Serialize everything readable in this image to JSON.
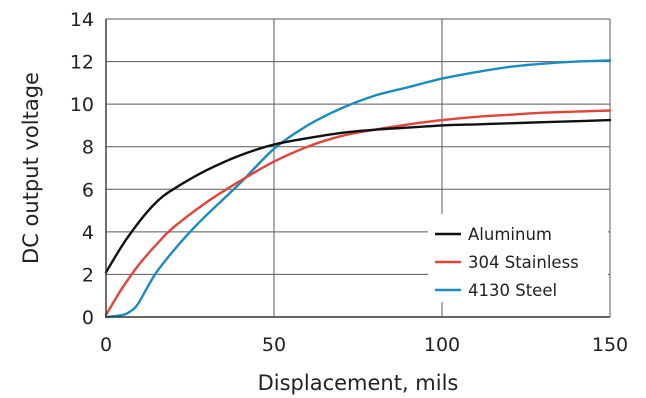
{
  "chart_data": {
    "type": "line",
    "title": "",
    "xlabel": "Displacement, mils",
    "ylabel": "DC output voltage",
    "xlim": [
      0,
      150
    ],
    "ylim": [
      0,
      14
    ],
    "xticks": [
      0,
      50,
      100,
      150
    ],
    "yticks": [
      0,
      2,
      4,
      6,
      8,
      10,
      12,
      14
    ],
    "grid": true,
    "legend_position": "lower-right",
    "series": [
      {
        "name": "Aluminum",
        "color": "#111111",
        "x": [
          0,
          5,
          10,
          15,
          20,
          30,
          40,
          50,
          60,
          70,
          80,
          90,
          100,
          110,
          120,
          130,
          140,
          150
        ],
        "y": [
          2.1,
          3.4,
          4.5,
          5.4,
          6.0,
          6.9,
          7.6,
          8.1,
          8.4,
          8.65,
          8.8,
          8.9,
          9.0,
          9.05,
          9.1,
          9.15,
          9.2,
          9.25
        ]
      },
      {
        "name": "304 Stainless",
        "color": "#e0453c",
        "x": [
          0,
          5,
          10,
          15,
          20,
          30,
          40,
          50,
          60,
          70,
          80,
          90,
          100,
          110,
          120,
          130,
          140,
          150
        ],
        "y": [
          0.1,
          1.4,
          2.5,
          3.4,
          4.2,
          5.4,
          6.4,
          7.3,
          8.0,
          8.5,
          8.8,
          9.05,
          9.25,
          9.4,
          9.5,
          9.6,
          9.65,
          9.7
        ]
      },
      {
        "name": "4130 Steel",
        "color": "#1a8bbd",
        "x": [
          0,
          3,
          6,
          9,
          12,
          15,
          20,
          25,
          30,
          40,
          50,
          60,
          70,
          80,
          90,
          100,
          110,
          120,
          130,
          140,
          150
        ],
        "y": [
          0,
          0.05,
          0.15,
          0.5,
          1.3,
          2.1,
          3.1,
          4.0,
          4.8,
          6.3,
          7.9,
          9.0,
          9.8,
          10.4,
          10.8,
          11.2,
          11.5,
          11.75,
          11.9,
          12.0,
          12.05
        ]
      }
    ]
  }
}
